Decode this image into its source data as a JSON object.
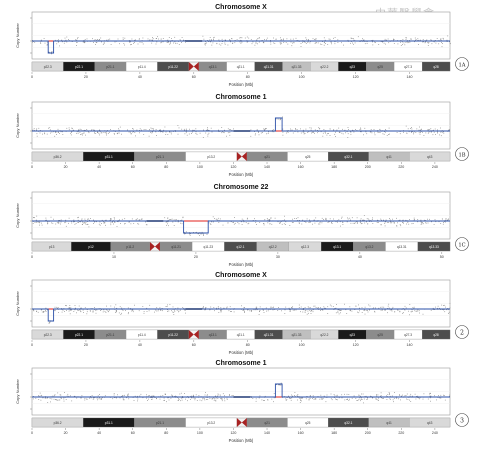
{
  "watermark": "中華醫學會",
  "colors": {
    "reference": "#e0201e",
    "call": "#2a4fa8",
    "points": "#8a8a8a",
    "centromere": "#a72222",
    "frame": "#9a9a9a"
  },
  "chart_data": [
    {
      "type": "scatter",
      "title": "Chromosome X",
      "xlabel": "Position (Mb)",
      "ylabel": "Copy Number",
      "panel_label": "1A",
      "xlim": [
        0,
        155
      ],
      "xticks": [
        "0",
        "20",
        "40",
        "60",
        "80",
        "100",
        "120",
        "140"
      ],
      "centromere_mb": 60,
      "events": [
        {
          "start": 6,
          "end": 8,
          "copy_number": "loss"
        }
      ],
      "bands": [
        "p22.3",
        "p22.1",
        "p21.1",
        "p11.4",
        "p11.22",
        "q13.1",
        "q21.1",
        "q21.31",
        "q21.33",
        "q22.2",
        "q23",
        "q25",
        "q27.3",
        "q28"
      ]
    },
    {
      "type": "scatter",
      "title": "Chromosome 1",
      "xlabel": "Position (Mb)",
      "ylabel": "Copy Number",
      "panel_label": "1B",
      "xlim": [
        0,
        249
      ],
      "xticks": [
        "0",
        "20",
        "40",
        "60",
        "80",
        "100",
        "120",
        "140",
        "160",
        "180",
        "200",
        "220",
        "240"
      ],
      "centromere_mb": 125,
      "events": [
        {
          "start": 145,
          "end": 149,
          "copy_number": "gain"
        }
      ],
      "bands": [
        "p36.2",
        "p31.1",
        "p21.1",
        "p13.2",
        "q21",
        "q25",
        "q32.1",
        "q41",
        "q43"
      ]
    },
    {
      "type": "scatter",
      "title": "Chromosome 22",
      "xlabel": "Position (Mb)",
      "ylabel": "Copy Number",
      "panel_label": "1C",
      "xlim": [
        0,
        51
      ],
      "xticks": [
        "0",
        "10",
        "20",
        "30",
        "40",
        "50"
      ],
      "centromere_mb": 15,
      "events": [
        {
          "start": 18.5,
          "end": 21.5,
          "copy_number": "loss"
        }
      ],
      "bands": [
        "p13",
        "p12",
        "p11.2",
        "q11.21",
        "q11.23",
        "q12.1",
        "q12.2",
        "q12.3",
        "q13.1",
        "q13.2",
        "q13.31",
        "q13.33"
      ]
    },
    {
      "type": "scatter",
      "title": "Chromosome X",
      "xlabel": "Position (Mb)",
      "ylabel": "Copy Number",
      "panel_label": "2",
      "xlim": [
        0,
        155
      ],
      "xticks": [
        "0",
        "20",
        "40",
        "60",
        "80",
        "100",
        "120",
        "140"
      ],
      "centromere_mb": 60,
      "events": [
        {
          "start": 6,
          "end": 8,
          "copy_number": "loss"
        }
      ],
      "bands": [
        "p22.3",
        "p22.1",
        "p21.1",
        "p11.4",
        "p11.22",
        "q13.1",
        "q21.1",
        "q21.31",
        "q21.33",
        "q22.2",
        "q23",
        "q25",
        "q27.3",
        "q28"
      ]
    },
    {
      "type": "scatter",
      "title": "Chromosome 1",
      "xlabel": "Position (Mb)",
      "ylabel": "Copy Number",
      "panel_label": "3",
      "xlim": [
        0,
        249
      ],
      "xticks": [
        "0",
        "20",
        "40",
        "60",
        "80",
        "100",
        "120",
        "140",
        "160",
        "180",
        "200",
        "220",
        "240"
      ],
      "centromere_mb": 125,
      "events": [
        {
          "start": 145,
          "end": 149,
          "copy_number": "gain"
        }
      ],
      "bands": [
        "p36.2",
        "p31.1",
        "p21.1",
        "p13.2",
        "q21",
        "q25",
        "q32.1",
        "q41",
        "q43"
      ]
    }
  ]
}
